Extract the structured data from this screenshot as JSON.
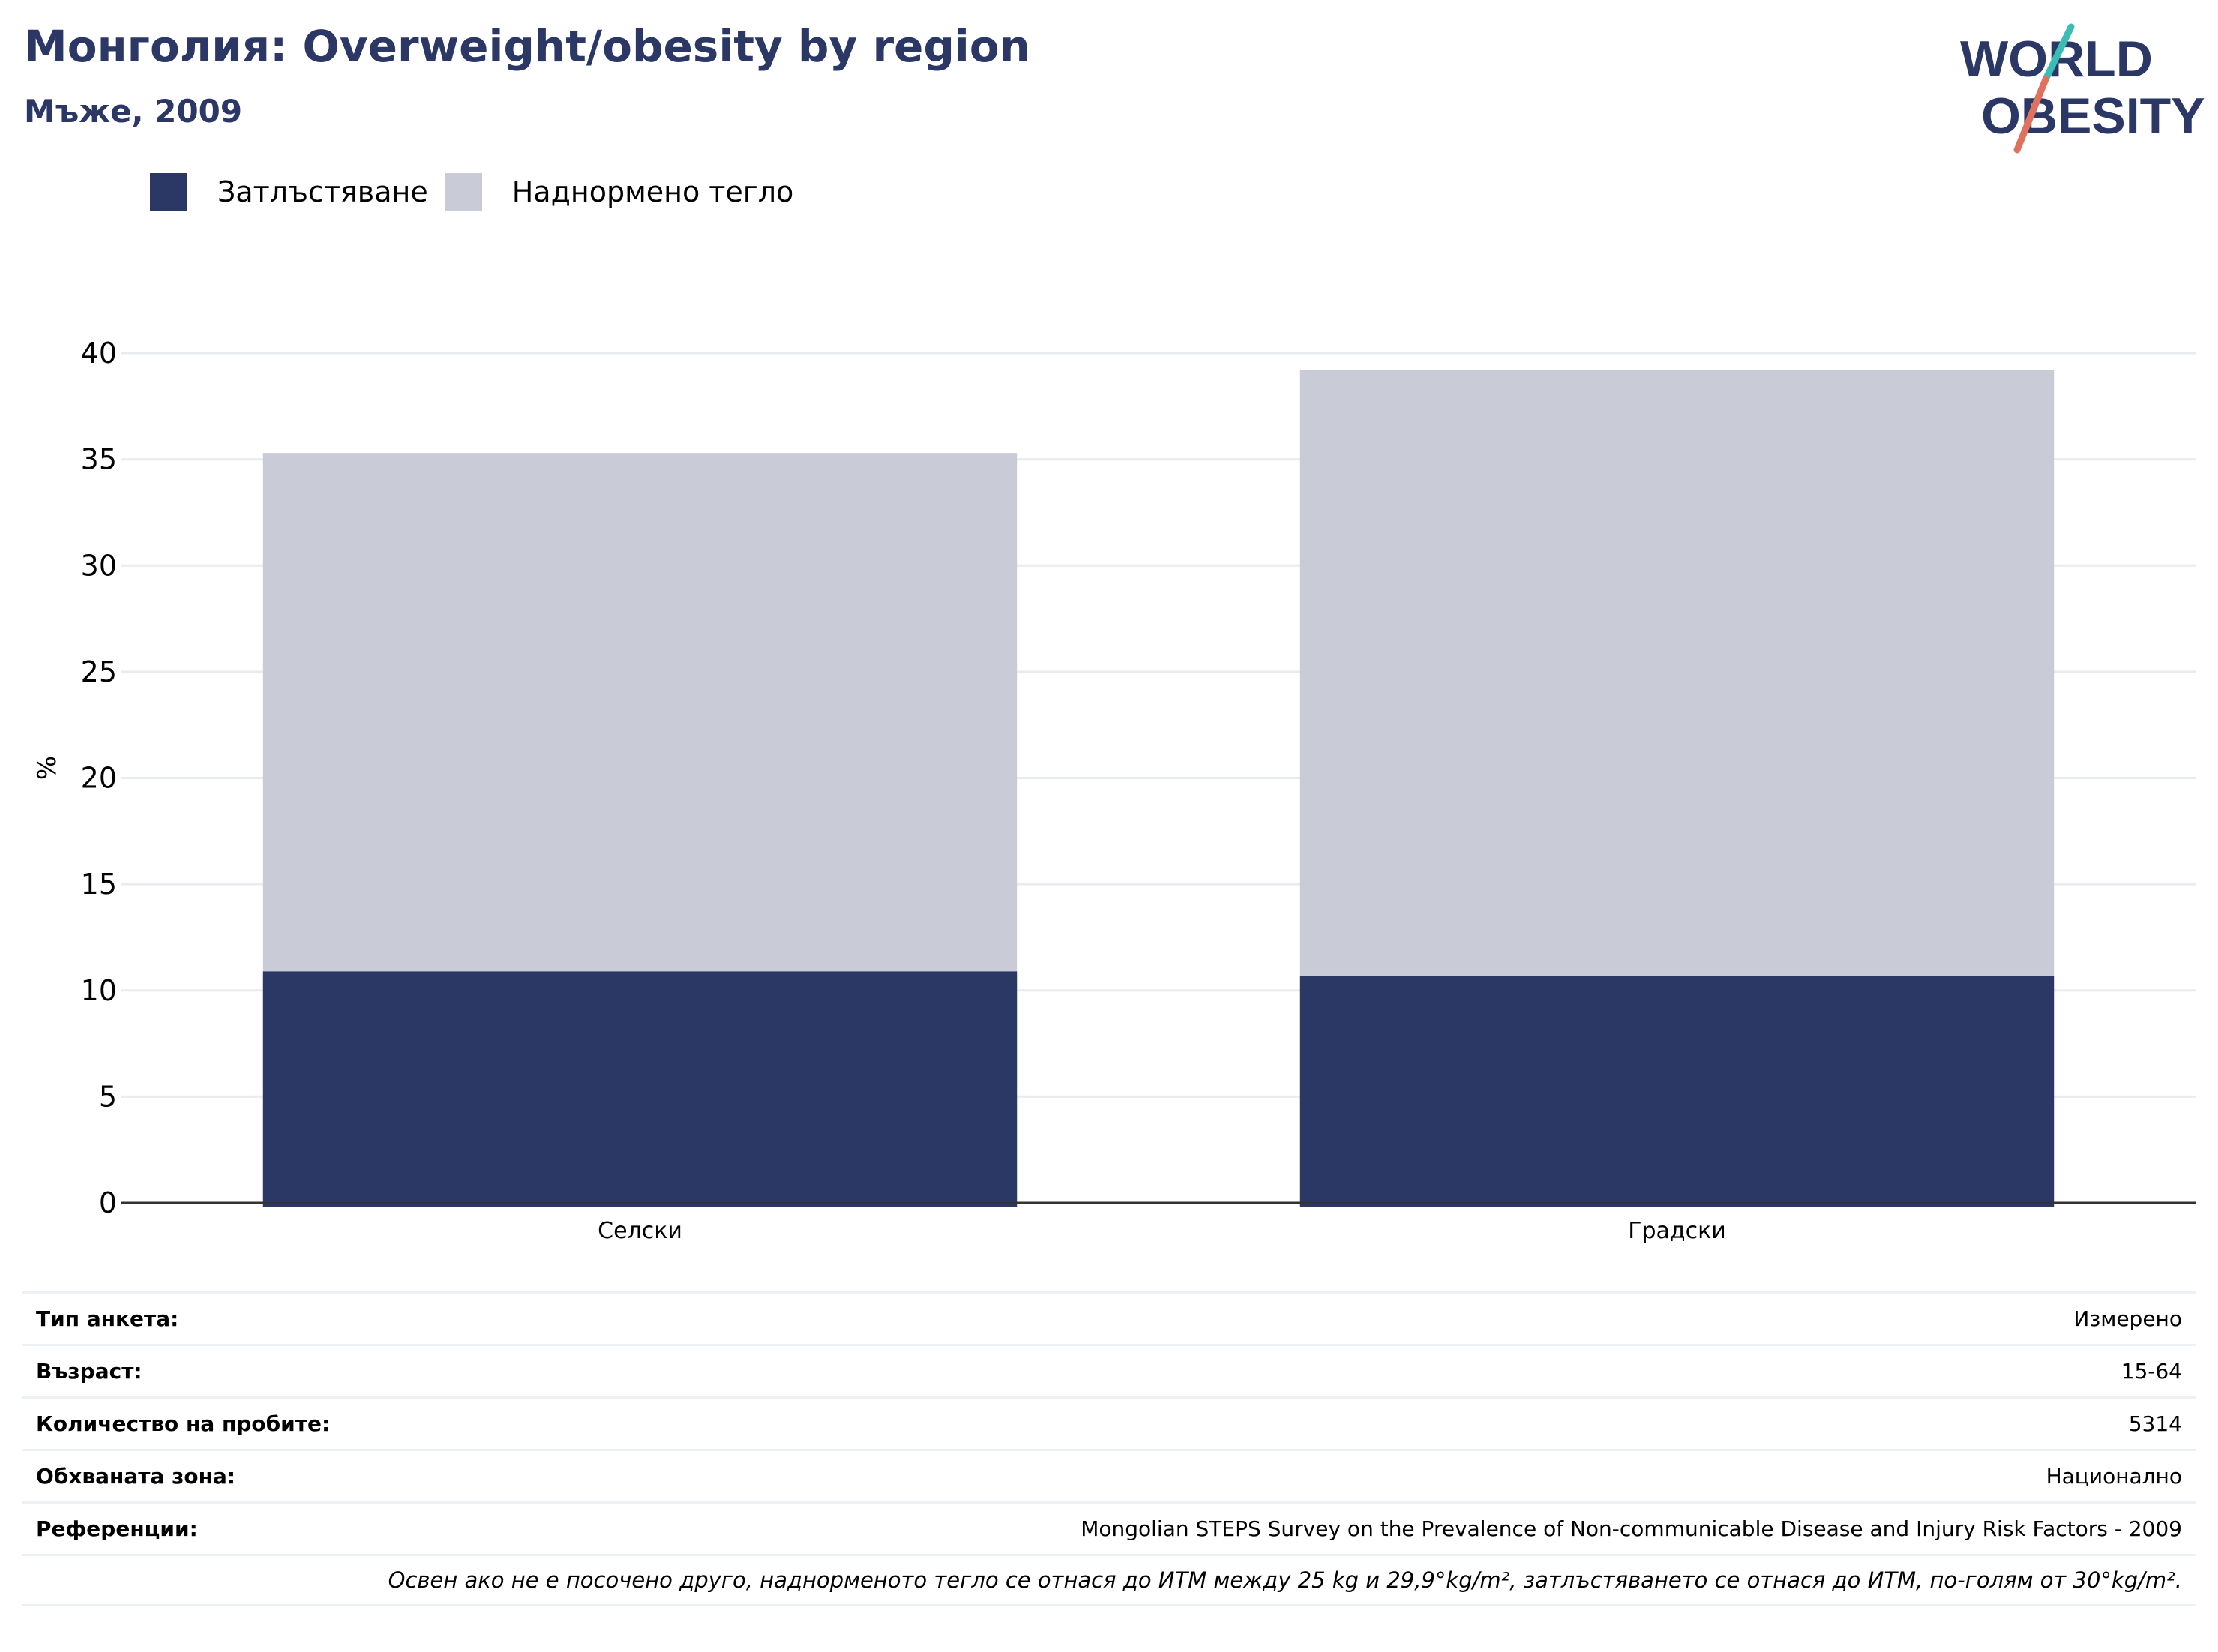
{
  "header": {
    "title": "Монголия: Overweight/obesity by region",
    "subtitle": "Мъже, 2009"
  },
  "logo": {
    "line1": "WORLD",
    "line2": "OBESITY"
  },
  "colors": {
    "obesity": "#2b3765",
    "overweight": "#c9cbd7",
    "title": "#2b3765",
    "logo_teal": "#3bbdb5",
    "logo_red": "#e0715d",
    "grid": "#e9ecef",
    "axis": "#333333"
  },
  "legend": [
    {
      "label": "Затлъстяване",
      "color": "#2b3765"
    },
    {
      "label": "Наднормено тегло",
      "color": "#c9cbd7"
    }
  ],
  "chart_data": {
    "type": "bar",
    "stacked": true,
    "categories": [
      "Селски",
      "Градски"
    ],
    "series": [
      {
        "name": "Затлъстяване",
        "values": [
          10.9,
          10.7
        ],
        "color": "#2b3765"
      },
      {
        "name": "Наднормено тегло",
        "values": [
          24.4,
          28.5
        ],
        "color": "#c9cbd7"
      }
    ],
    "ylabel": "%",
    "xlabel": "",
    "ylim": [
      0,
      40
    ],
    "yticks": [
      0,
      5,
      10,
      15,
      20,
      25,
      30,
      35,
      40
    ],
    "grid": true,
    "legend_position": "top-left"
  },
  "info": {
    "rows": [
      {
        "label": "Тип анкета:",
        "value": "Измерено"
      },
      {
        "label": "Възраст:",
        "value": "15-64"
      },
      {
        "label": "Количество на пробите:",
        "value": "5314"
      },
      {
        "label": "Обхваната зона:",
        "value": "Национално"
      },
      {
        "label": "Референции:",
        "value": "Mongolian STEPS Survey on the Prevalence of Non-communicable Disease and Injury Risk Factors - 2009"
      }
    ],
    "footnote": "Освен ако не е посочено друго, наднорменото тегло се отнася до ИТМ между 25 kg и 29,9°kg/m², затлъстяването се отнася до ИТМ, по-голям от 30°kg/m²."
  }
}
